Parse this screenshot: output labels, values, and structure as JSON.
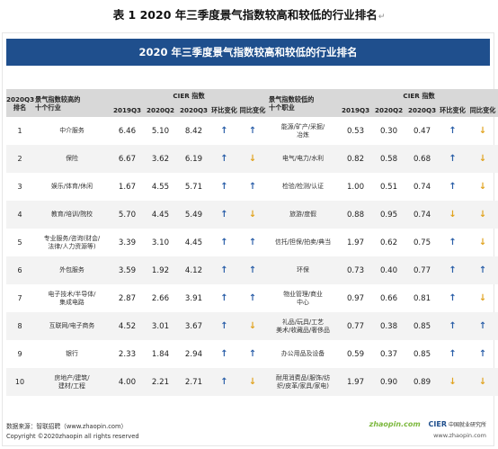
{
  "doc_title": "表 1 2020 年三季度景气指数较高和较低的行业排名",
  "return_mark": "↵",
  "banner": "2020 年三季度景气指数较高和较低的行业排名",
  "headers": {
    "rank": "2020Q3\n排名",
    "high_industry": "景气指数较高的\n十个行业",
    "cier_index": "CIER 指数",
    "low_industry": "景气指数较低的\n十个职业",
    "q2019": "2019Q3",
    "q2020_2": "2020Q2",
    "q2020_3": "2020Q3",
    "qoq": "环比变化",
    "yoy": "同比变化"
  },
  "rows": [
    {
      "rank": "1",
      "high": "中介服务",
      "h1": "6.46",
      "h2": "5.10",
      "h3": "8.42",
      "hq": "up",
      "hy": "up",
      "low": "能源/矿产/采掘/\n冶炼",
      "l1": "0.53",
      "l2": "0.30",
      "l3": "0.47",
      "lq": "up",
      "ly": "down"
    },
    {
      "rank": "2",
      "high": "保险",
      "h1": "6.67",
      "h2": "3.62",
      "h3": "6.19",
      "hq": "up",
      "hy": "down",
      "low": "电气/电力/水利",
      "l1": "0.82",
      "l2": "0.58",
      "l3": "0.68",
      "lq": "up",
      "ly": "down"
    },
    {
      "rank": "3",
      "high": "娱乐/体育/休闲",
      "h1": "1.67",
      "h2": "4.55",
      "h3": "5.71",
      "hq": "up",
      "hy": "up",
      "low": "检验/检测/认证",
      "l1": "1.00",
      "l2": "0.51",
      "l3": "0.74",
      "lq": "up",
      "ly": "down"
    },
    {
      "rank": "4",
      "high": "教育/培训/院校",
      "h1": "5.70",
      "h2": "4.45",
      "h3": "5.49",
      "hq": "up",
      "hy": "down",
      "low": "旅游/度假",
      "l1": "0.88",
      "l2": "0.95",
      "l3": "0.74",
      "lq": "down",
      "ly": "down"
    },
    {
      "rank": "5",
      "high": "专业服务/咨询(财会/\n法律/人力资源等)",
      "h1": "3.39",
      "h2": "3.10",
      "h3": "4.45",
      "hq": "up",
      "hy": "up",
      "low": "信托/担保/拍卖/典当",
      "l1": "1.97",
      "l2": "0.62",
      "l3": "0.75",
      "lq": "up",
      "ly": "down"
    },
    {
      "rank": "6",
      "high": "外包服务",
      "h1": "3.59",
      "h2": "1.92",
      "h3": "4.12",
      "hq": "up",
      "hy": "up",
      "low": "环保",
      "l1": "0.73",
      "l2": "0.40",
      "l3": "0.77",
      "lq": "up",
      "ly": "up"
    },
    {
      "rank": "7",
      "high": "电子技术/半导体/\n集成电路",
      "h1": "2.87",
      "h2": "2.66",
      "h3": "3.91",
      "hq": "up",
      "hy": "up",
      "low": "物业管理/商业\n中心",
      "l1": "0.97",
      "l2": "0.66",
      "l3": "0.81",
      "lq": "up",
      "ly": "down"
    },
    {
      "rank": "8",
      "high": "互联网/电子商务",
      "h1": "4.52",
      "h2": "3.01",
      "h3": "3.67",
      "hq": "up",
      "hy": "down",
      "low": "礼品/玩具/工艺\n美术/收藏品/奢侈品",
      "l1": "0.77",
      "l2": "0.38",
      "l3": "0.85",
      "lq": "up",
      "ly": "up"
    },
    {
      "rank": "9",
      "high": "银行",
      "h1": "2.33",
      "h2": "1.84",
      "h3": "2.94",
      "hq": "up",
      "hy": "up",
      "low": "办公用品及设备",
      "l1": "0.59",
      "l2": "0.37",
      "l3": "0.85",
      "lq": "up",
      "ly": "up"
    },
    {
      "rank": "10",
      "high": "房地产/建筑/\n建材/工程",
      "h1": "4.00",
      "h2": "2.21",
      "h3": "2.71",
      "hq": "up",
      "hy": "down",
      "low": "耐用消费品(服饰/纺\n织/皮革/家具/家电)",
      "l1": "1.97",
      "l2": "0.90",
      "l3": "0.89",
      "lq": "down",
      "ly": "down"
    }
  ],
  "arrows": {
    "up": "↑",
    "down": "↓"
  },
  "footer": {
    "source": "数据来源：智联招聘（www.zhaopin.com）",
    "copyright": "Copyright ©2020zhaopin all rights reserved",
    "logo_zhaopin": "zhaopin.com",
    "logo_cier": "CIER",
    "logo_cier_cn": "中国就业研究所",
    "url": "www.zhaopin.com"
  }
}
